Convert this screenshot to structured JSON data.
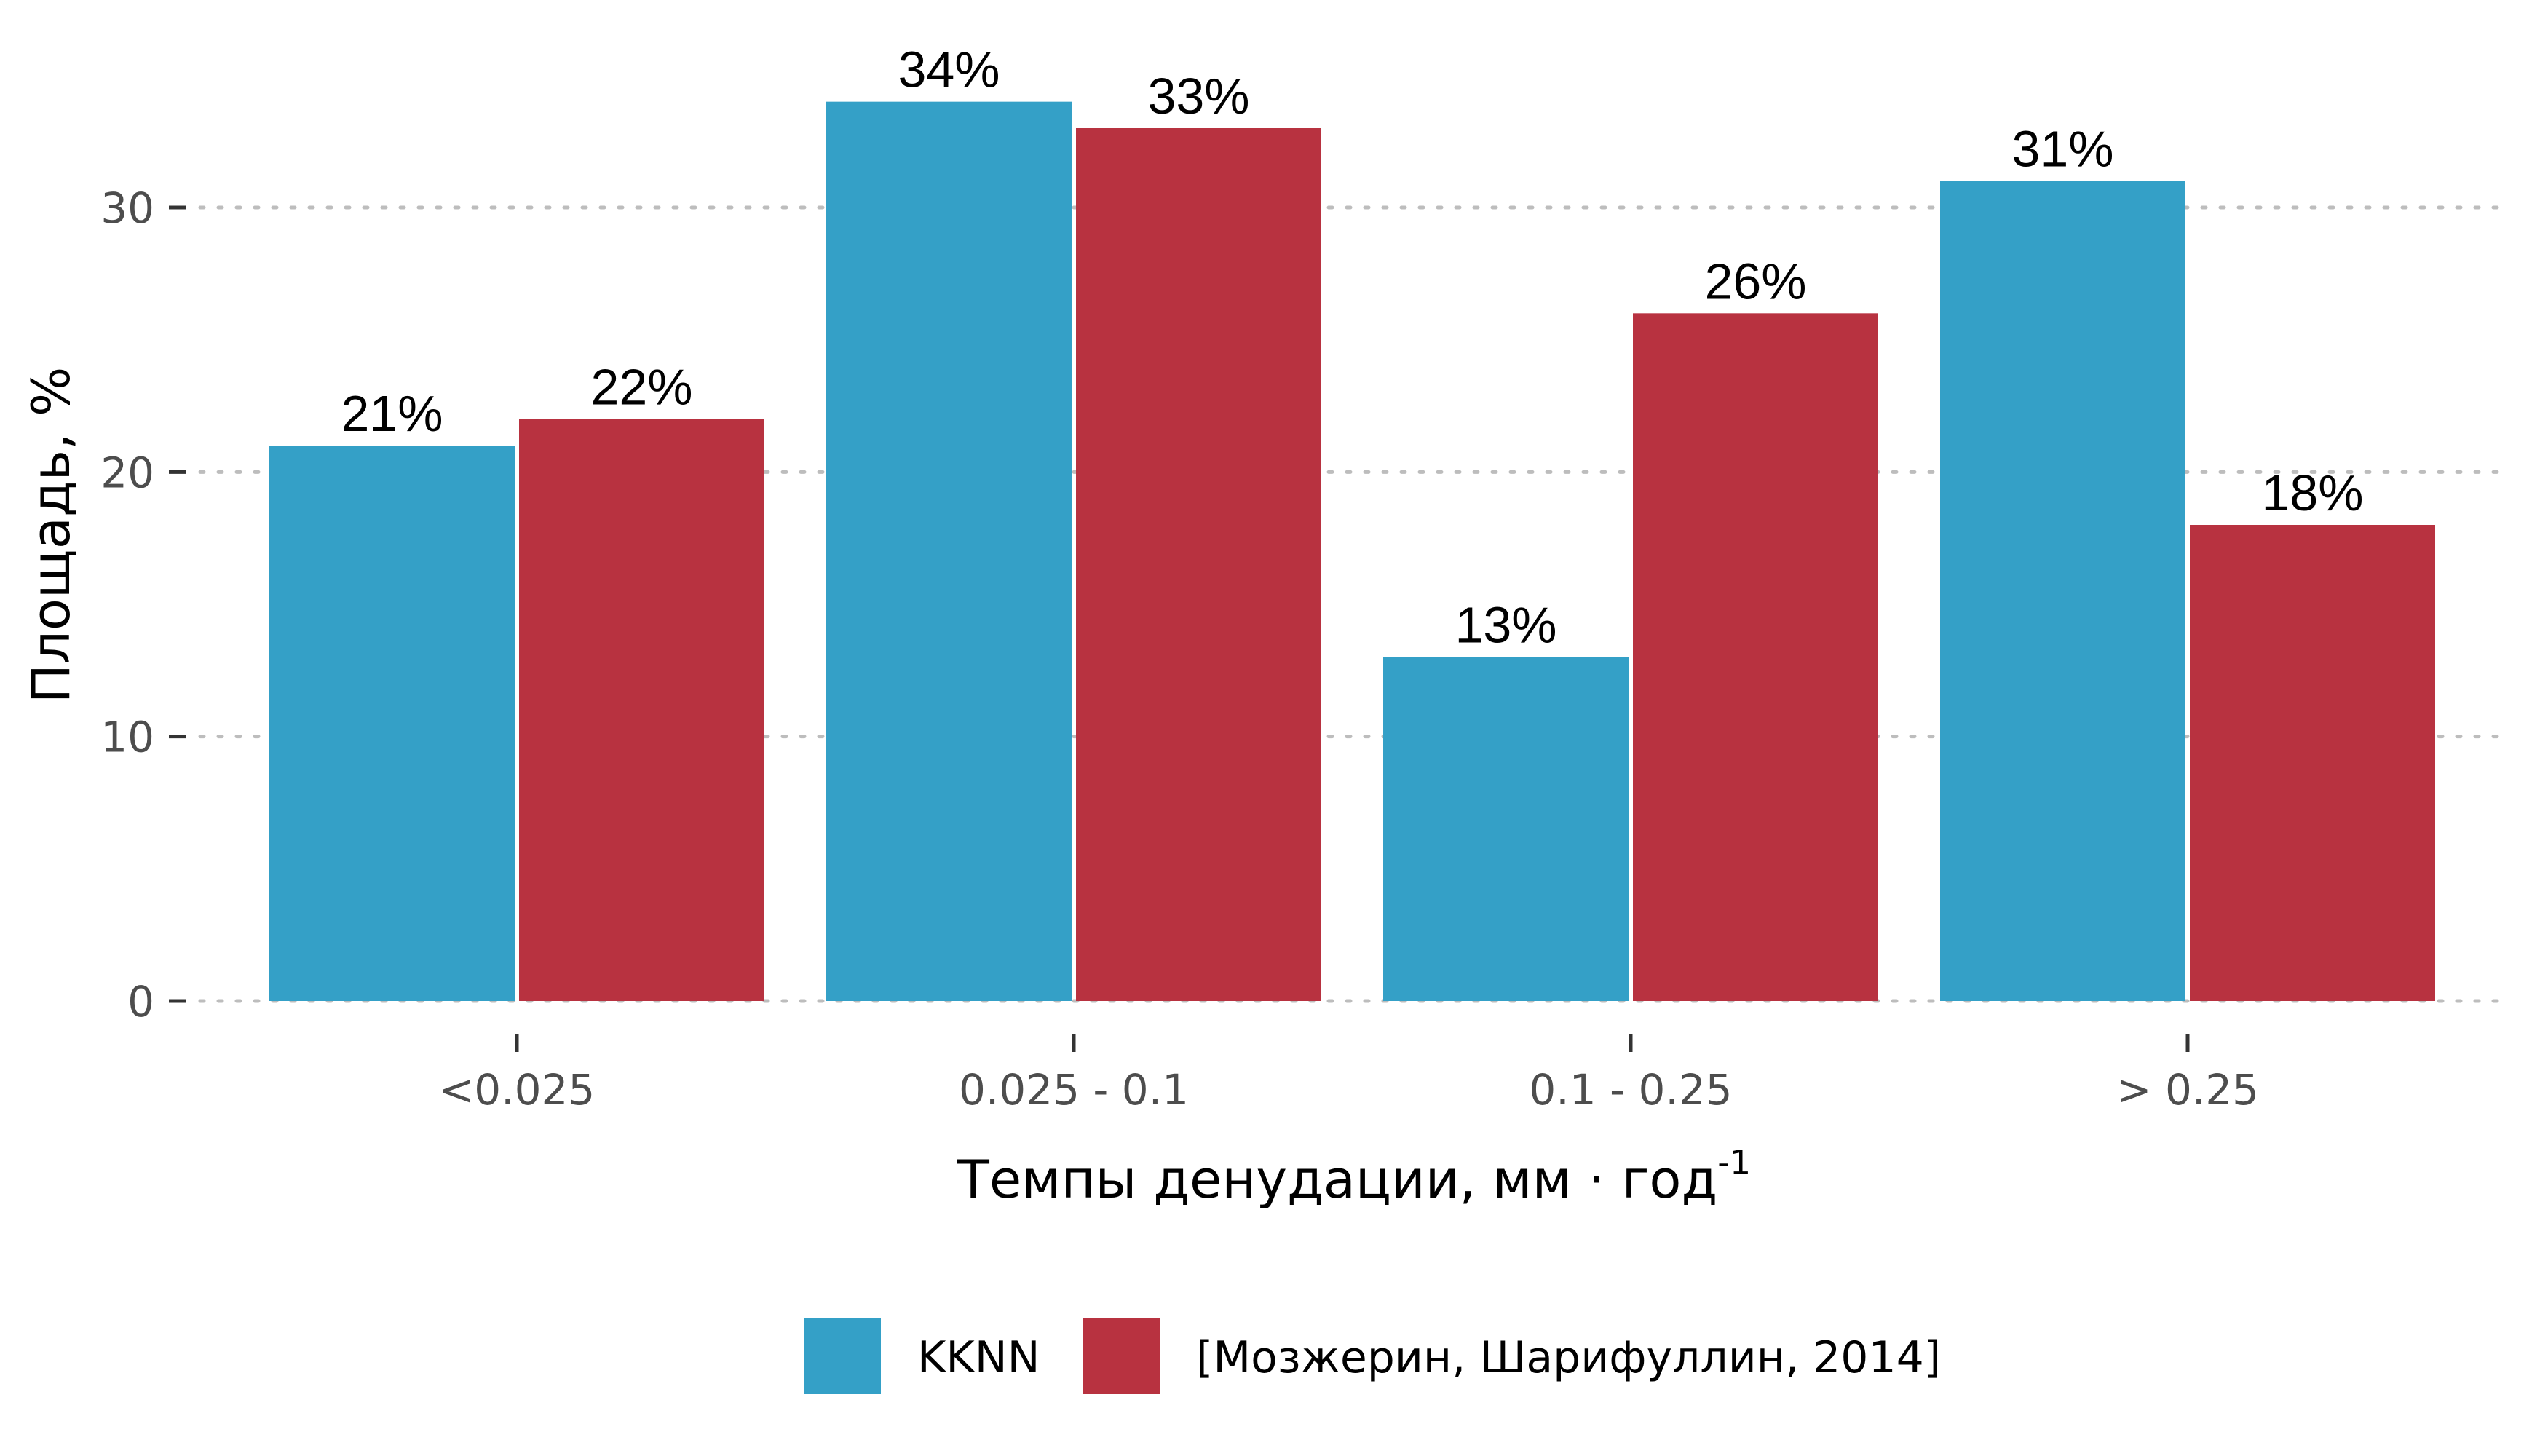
{
  "chart_data": {
    "type": "bar",
    "categories": [
      "<0.025",
      "0.025 - 0.1",
      "0.1 - 0.25",
      "> 0.25"
    ],
    "series": [
      {
        "name": "KKNN",
        "values": [
          21,
          34,
          13,
          31
        ],
        "color": "#34A0C7"
      },
      {
        "name": "[Мозжерин, Шарифуллин, 2014]",
        "values": [
          22,
          33,
          26,
          18
        ],
        "color": "#B83240"
      }
    ],
    "data_labels": [
      [
        "21%",
        "34%",
        "13%",
        "31%"
      ],
      [
        "22%",
        "33%",
        "26%",
        "18%"
      ]
    ],
    "xlabel_main": "Темпы денудации, мм · год",
    "xlabel_sup": "-1",
    "ylabel": "Площадь, %",
    "ylim": [
      0,
      36.5
    ],
    "yticks": [
      0,
      10,
      20,
      30
    ],
    "grid": "dotted-horizontal",
    "legend_position": "bottom"
  }
}
